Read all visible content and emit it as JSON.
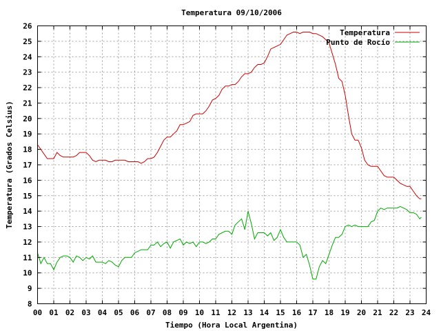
{
  "chart_data": {
    "type": "line",
    "title": "Temperatura 09/10/2006",
    "xlabel": "Tiempo (Hora Local Argentina)",
    "ylabel": "Temperatura (Grados Celsius)",
    "xlim": [
      0,
      24
    ],
    "ylim": [
      8,
      26
    ],
    "x_ticks": [
      "00",
      "01",
      "02",
      "03",
      "04",
      "05",
      "06",
      "07",
      "08",
      "09",
      "10",
      "11",
      "12",
      "13",
      "14",
      "15",
      "16",
      "17",
      "18",
      "19",
      "20",
      "21",
      "22",
      "23",
      "24"
    ],
    "y_ticks": [
      "8",
      "9",
      "10",
      "11",
      "12",
      "13",
      "14",
      "15",
      "16",
      "17",
      "18",
      "19",
      "20",
      "21",
      "22",
      "23",
      "24",
      "25",
      "26"
    ],
    "grid": true,
    "legend_position": "top-right",
    "series": [
      {
        "name": "Temperatura",
        "color": "#cc0000",
        "x": [
          0,
          0.2,
          0.4,
          0.6,
          0.8,
          1.0,
          1.1,
          1.2,
          1.4,
          1.6,
          1.8,
          2.0,
          2.2,
          2.4,
          2.6,
          2.8,
          3.0,
          3.2,
          3.4,
          3.6,
          3.8,
          4.0,
          4.2,
          4.4,
          4.6,
          4.8,
          5.0,
          5.2,
          5.4,
          5.6,
          5.8,
          6.0,
          6.2,
          6.4,
          6.6,
          6.8,
          7.0,
          7.2,
          7.4,
          7.6,
          7.8,
          8.0,
          8.2,
          8.4,
          8.6,
          8.8,
          9.0,
          9.2,
          9.4,
          9.6,
          9.8,
          10.0,
          10.2,
          10.4,
          10.6,
          10.8,
          11.0,
          11.2,
          11.4,
          11.6,
          11.8,
          12.0,
          12.2,
          12.4,
          12.6,
          12.8,
          13.0,
          13.2,
          13.4,
          13.6,
          13.8,
          14.0,
          14.2,
          14.4,
          14.6,
          14.8,
          15.0,
          15.2,
          15.4,
          15.6,
          15.8,
          16.0,
          16.2,
          16.4,
          16.6,
          16.8,
          17.0,
          17.2,
          17.4,
          17.6,
          17.8,
          18.0,
          18.2,
          18.4,
          18.6,
          18.8,
          19.0,
          19.2,
          19.4,
          19.6,
          19.8,
          20.0,
          20.2,
          20.4,
          20.6,
          20.8,
          21.0,
          21.2,
          21.4,
          21.6,
          21.8,
          22.0,
          22.2,
          22.4,
          22.6,
          22.8,
          23.0,
          23.2,
          23.4,
          23.6,
          23.7
        ],
        "values": [
          18.3,
          18.0,
          17.7,
          17.4,
          17.4,
          17.4,
          17.6,
          17.8,
          17.6,
          17.5,
          17.5,
          17.5,
          17.5,
          17.6,
          17.8,
          17.8,
          17.8,
          17.6,
          17.3,
          17.2,
          17.3,
          17.3,
          17.3,
          17.2,
          17.2,
          17.3,
          17.3,
          17.3,
          17.3,
          17.2,
          17.2,
          17.2,
          17.2,
          17.1,
          17.2,
          17.4,
          17.4,
          17.5,
          17.8,
          18.2,
          18.6,
          18.8,
          18.8,
          19.0,
          19.2,
          19.6,
          19.6,
          19.7,
          19.8,
          20.2,
          20.3,
          20.3,
          20.3,
          20.5,
          20.8,
          21.2,
          21.3,
          21.5,
          21.9,
          22.1,
          22.1,
          22.2,
          22.2,
          22.4,
          22.7,
          22.9,
          22.9,
          23.0,
          23.3,
          23.5,
          23.5,
          23.6,
          24.0,
          24.5,
          24.6,
          24.7,
          24.8,
          25.1,
          25.4,
          25.5,
          25.6,
          25.6,
          25.5,
          25.6,
          25.6,
          25.6,
          25.5,
          25.5,
          25.4,
          25.3,
          25.1,
          24.9,
          24.2,
          23.5,
          22.6,
          22.4,
          21.5,
          20.2,
          19.0,
          18.6,
          18.6,
          18.1,
          17.3,
          17.0,
          16.9,
          16.9,
          16.9,
          16.6,
          16.3,
          16.2,
          16.2,
          16.2,
          16.0,
          15.8,
          15.7,
          15.6,
          15.6,
          15.3,
          15.0,
          14.8,
          14.8
        ]
      },
      {
        "name": "Punto de Rocío",
        "color": "#00aa00",
        "x": [
          0,
          0.2,
          0.4,
          0.6,
          0.8,
          1.0,
          1.2,
          1.4,
          1.6,
          1.8,
          2.0,
          2.2,
          2.4,
          2.6,
          2.8,
          3.0,
          3.2,
          3.4,
          3.6,
          3.8,
          4.0,
          4.2,
          4.4,
          4.6,
          4.8,
          5.0,
          5.2,
          5.4,
          5.6,
          5.8,
          6.0,
          6.2,
          6.4,
          6.6,
          6.8,
          7.0,
          7.2,
          7.4,
          7.6,
          7.8,
          8.0,
          8.2,
          8.4,
          8.6,
          8.8,
          9.0,
          9.2,
          9.4,
          9.6,
          9.8,
          10.0,
          10.2,
          10.4,
          10.6,
          10.8,
          11.0,
          11.2,
          11.4,
          11.6,
          11.8,
          12.0,
          12.2,
          12.4,
          12.6,
          12.8,
          13.0,
          13.2,
          13.4,
          13.6,
          13.8,
          14.0,
          14.2,
          14.4,
          14.6,
          14.8,
          15.0,
          15.2,
          15.4,
          15.6,
          15.8,
          16.0,
          16.2,
          16.4,
          16.6,
          16.8,
          17.0,
          17.2,
          17.4,
          17.6,
          17.8,
          18.0,
          18.2,
          18.4,
          18.6,
          18.8,
          19.0,
          19.2,
          19.4,
          19.6,
          19.8,
          20.0,
          20.2,
          20.4,
          20.6,
          20.8,
          21.0,
          21.2,
          21.4,
          21.6,
          21.8,
          22.0,
          22.2,
          22.4,
          22.6,
          22.8,
          23.0,
          23.2,
          23.4,
          23.6,
          23.7
        ],
        "values": [
          11.3,
          10.6,
          11.0,
          10.6,
          10.6,
          10.2,
          10.7,
          11.0,
          11.1,
          11.1,
          11.0,
          10.7,
          11.1,
          11.0,
          10.8,
          11.0,
          10.9,
          11.1,
          10.7,
          10.7,
          10.7,
          10.6,
          10.8,
          10.7,
          10.5,
          10.4,
          10.8,
          11.0,
          11.0,
          11.0,
          11.3,
          11.4,
          11.5,
          11.5,
          11.5,
          11.8,
          11.8,
          12.0,
          11.7,
          11.9,
          12.0,
          11.6,
          12.0,
          12.1,
          12.2,
          11.8,
          12.0,
          11.9,
          12.0,
          11.7,
          12.0,
          12.0,
          11.9,
          12.0,
          12.2,
          12.2,
          12.5,
          12.6,
          12.7,
          12.7,
          12.5,
          13.1,
          13.3,
          13.5,
          12.8,
          14.0,
          13.2,
          12.2,
          12.6,
          12.6,
          12.6,
          12.4,
          12.6,
          12.1,
          12.3,
          12.8,
          12.3,
          12.0,
          12.0,
          12.0,
          12.0,
          11.8,
          11.0,
          11.2,
          10.5,
          9.6,
          9.6,
          10.4,
          10.8,
          10.6,
          11.2,
          11.8,
          12.3,
          12.3,
          12.5,
          13.0,
          13.1,
          13.0,
          13.1,
          13.0,
          13.0,
          13.0,
          13.0,
          13.3,
          13.4,
          14.0,
          14.2,
          14.1,
          14.2,
          14.2,
          14.2,
          14.2,
          14.3,
          14.2,
          14.1,
          13.9,
          13.9,
          13.8,
          13.5,
          13.6
        ]
      }
    ]
  }
}
